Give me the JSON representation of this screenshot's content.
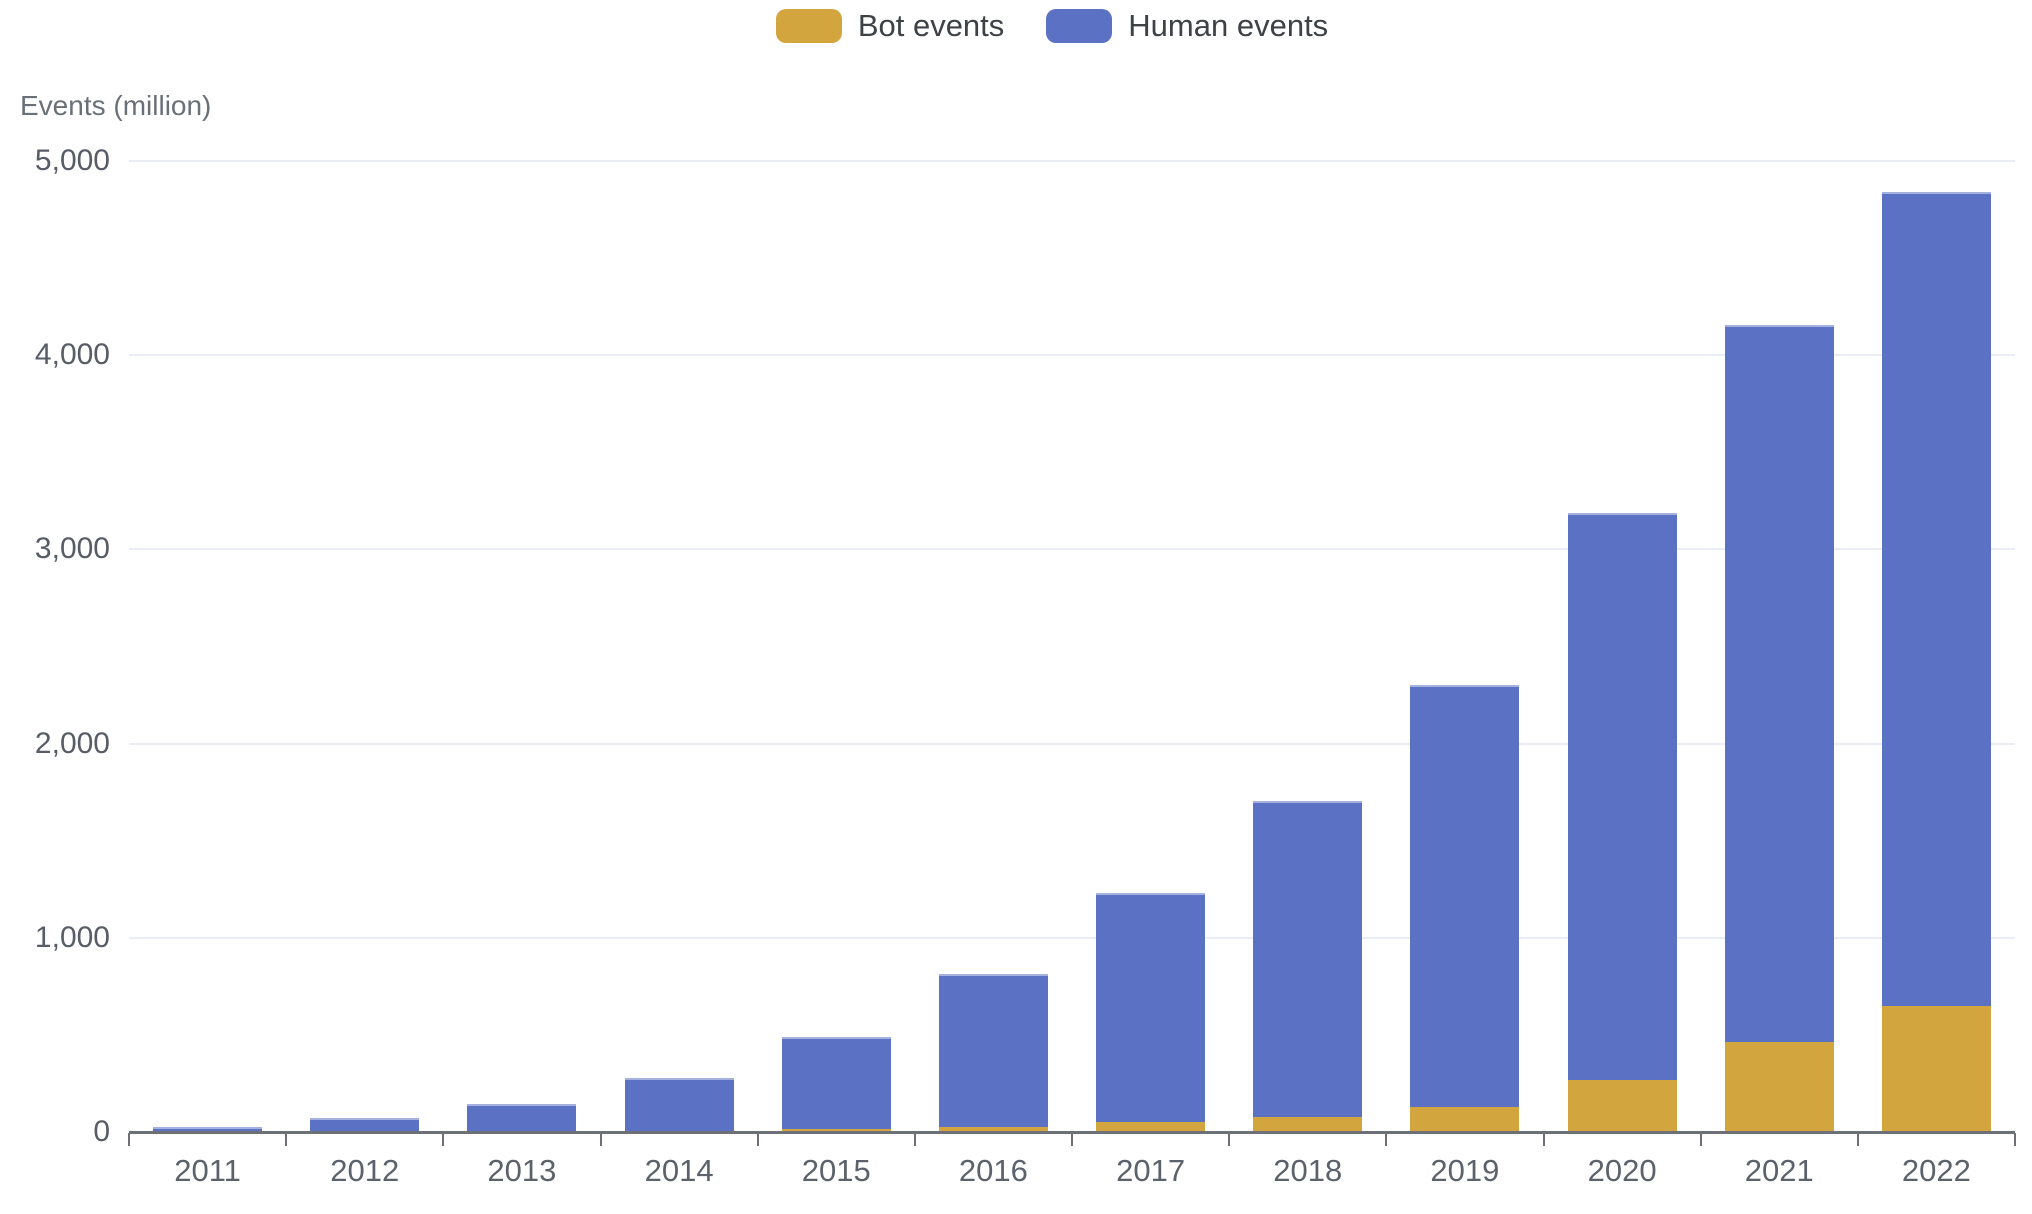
{
  "legend": {
    "items": [
      {
        "label": "Bot events",
        "color": "#d2a53e"
      },
      {
        "label": "Human events",
        "color": "#5b71c3"
      }
    ]
  },
  "y_axis": {
    "title": "Events (million)"
  },
  "chart_data": {
    "type": "bar",
    "stacked": true,
    "title": "",
    "xlabel": "",
    "ylabel": "Events (million)",
    "categories": [
      "2011",
      "2012",
      "2013",
      "2014",
      "2015",
      "2016",
      "2017",
      "2018",
      "2019",
      "2020",
      "2021",
      "2022"
    ],
    "series": [
      {
        "name": "Bot events",
        "color": "#d2a53e",
        "values": [
          0,
          0,
          0,
          5,
          15,
          25,
          50,
          75,
          130,
          270,
          465,
          650
        ]
      },
      {
        "name": "Human events",
        "color": "#5b71c3",
        "values": [
          25,
          70,
          145,
          275,
          475,
          790,
          1180,
          1630,
          2170,
          2920,
          3690,
          4190
        ]
      }
    ],
    "totals": [
      25,
      70,
      145,
      280,
      490,
      815,
      1230,
      1705,
      2300,
      3190,
      4155,
      4840
    ],
    "ylim": [
      0,
      5000
    ],
    "yticks": [
      0,
      1000,
      2000,
      3000,
      4000,
      5000
    ],
    "ytick_labels": [
      "0",
      "1,000",
      "2,000",
      "3,000",
      "4,000",
      "5,000"
    ],
    "grid": true,
    "legend_position": "top-center"
  },
  "colors": {
    "background": "#ffffff",
    "grid": "#eaedf6",
    "axis": "#6d7076",
    "y_tick_label": "#575c66",
    "x_tick_label": "#5c626b",
    "legend_text": "#3e4247",
    "bot": "#d2a53e",
    "human": "#5b71c3"
  }
}
